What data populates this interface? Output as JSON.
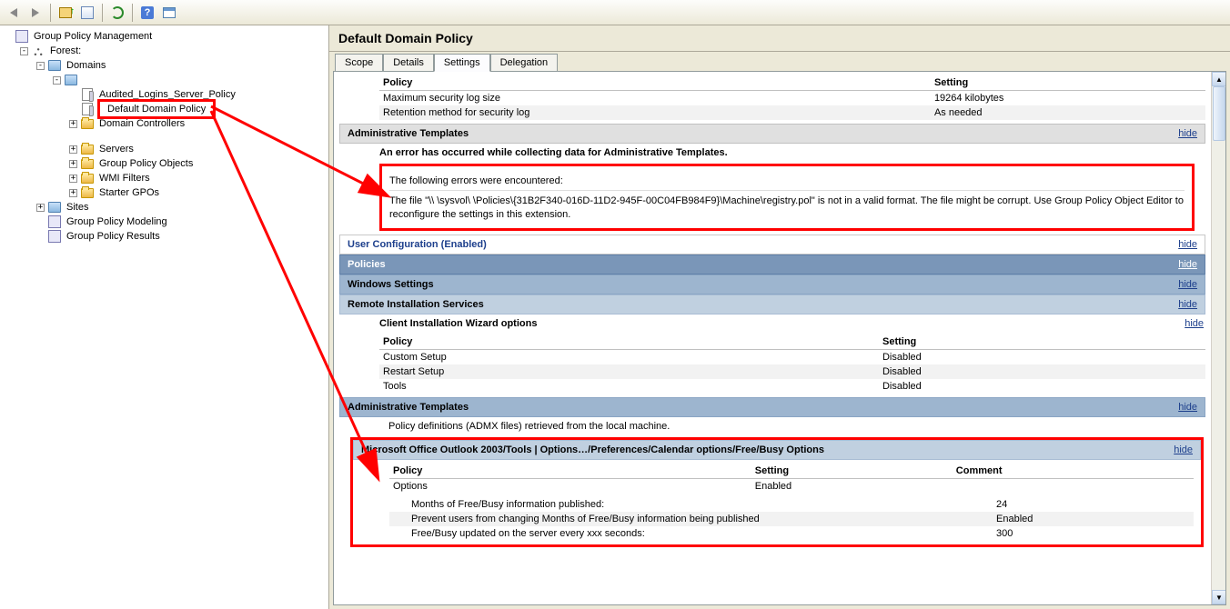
{
  "toolbar": {
    "back": "Back",
    "forward": "Forward",
    "up": "Up one level",
    "props": "Properties",
    "refresh": "Refresh",
    "help": "Help",
    "window": "Show/Hide"
  },
  "tree": {
    "root": "Group Policy Management",
    "forest": "Forest:",
    "domains": "Domains",
    "domain_children": [
      {
        "label": "Audited_Logins_Server_Policy",
        "icon": "scroll",
        "expand": null
      },
      {
        "label": "Default Domain Policy",
        "icon": "scroll",
        "expand": null,
        "selected": true
      },
      {
        "label": "Domain Controllers",
        "icon": "folder",
        "expand": "+"
      }
    ],
    "domain_extra": [
      {
        "label": "Servers",
        "icon": "folder"
      },
      {
        "label": "Group Policy Objects",
        "icon": "folder"
      },
      {
        "label": "WMI Filters",
        "icon": "folder"
      },
      {
        "label": "Starter GPOs",
        "icon": "folder"
      }
    ],
    "sites": "Sites",
    "gpmodeling": "Group Policy Modeling",
    "gpresults": "Group Policy Results"
  },
  "content": {
    "title": "Default Domain Policy",
    "tabs": [
      "Scope",
      "Details",
      "Settings",
      "Delegation"
    ],
    "active_tab": 2,
    "hide": "hide",
    "top_table": {
      "headers": [
        "Policy",
        "Setting"
      ],
      "rows": [
        [
          "Maximum security log size",
          "19264 kilobytes"
        ],
        [
          "Retention method for security log",
          "As needed"
        ]
      ]
    },
    "admin_templates": "Administrative Templates",
    "error": {
      "title": "An error has occurred while collecting data for Administrative Templates.",
      "intro": "The following errors were encountered:",
      "body": "The file \"\\\\                                      \\sysvol\\                                      \\Policies\\{31B2F340-016D-11D2-945F-00C04FB984F9}\\Machine\\registry.pol\" is not in a valid format. The file might be corrupt. Use Group Policy Object Editor to reconfigure the settings in this extension."
    },
    "user_config": "User Configuration (Enabled)",
    "policies": "Policies",
    "windows_settings": "Windows Settings",
    "remote_install": "Remote Installation Services",
    "client_wizard": "Client Installation Wizard options",
    "client_table": {
      "headers": [
        "Policy",
        "Setting"
      ],
      "rows": [
        [
          "Custom Setup",
          "Disabled"
        ],
        [
          "Restart Setup",
          "Disabled"
        ],
        [
          "Tools",
          "Disabled"
        ]
      ]
    },
    "admin_templates2": "Administrative Templates",
    "policy_def": "Policy definitions (ADMX files) retrieved from the local machine.",
    "outlook_section": "Microsoft Office Outlook 2003/Tools | Options…/Preferences/Calendar options/Free/Busy Options",
    "options_table": {
      "headers": [
        "Policy",
        "Setting",
        "Comment"
      ],
      "rows": [
        [
          "Options",
          "Enabled",
          ""
        ]
      ]
    },
    "sub_rows": [
      [
        "Months of Free/Busy information published:",
        "24"
      ],
      [
        "Prevent users from changing Months of Free/Busy information being published",
        "Enabled"
      ],
      [
        "Free/Busy updated on the server every xxx seconds:",
        "300"
      ]
    ]
  },
  "colors": {
    "red": "#ff0000",
    "blue_link": "#1d3f8c",
    "hdr_dark": "#7a96b8",
    "hdr_med": "#9db5cf",
    "hdr_light": "#c0d0e0"
  }
}
